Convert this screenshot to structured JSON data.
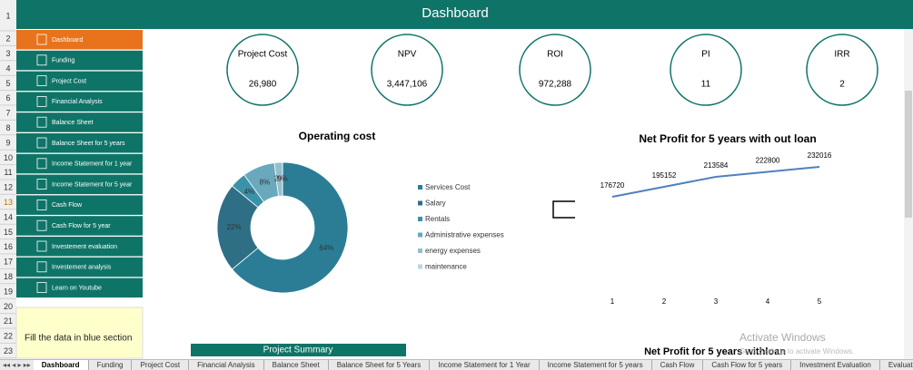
{
  "header": {
    "title": "Dashboard"
  },
  "row_numbers": [
    "1",
    "2",
    "3",
    "4",
    "5",
    "6",
    "7",
    "8",
    "9",
    "10",
    "11",
    "12",
    "13",
    "14",
    "15",
    "16",
    "17",
    "18",
    "19",
    "20",
    "21",
    "22",
    "23"
  ],
  "sidebar": [
    "Dashboard",
    "Funding",
    "Project Cost",
    "Financial Analysis",
    "Balance Sheet",
    "Balance Sheet for 5 years",
    "Income Statement for 1 year",
    "Income Statement for 5 year",
    "Cash Flow",
    "Cash Flow for 5 year",
    "Investement evaluation",
    "Investement analysis",
    "Learn on Youtube"
  ],
  "note": "Fill the data in blue section",
  "kpis": [
    {
      "label": "Project Cost",
      "value": "26,980"
    },
    {
      "label": "NPV",
      "value": "3,447,106"
    },
    {
      "label": "ROI",
      "value": "972,288"
    },
    {
      "label": "PI",
      "value": "11"
    },
    {
      "label": "IRR",
      "value": "2"
    }
  ],
  "chart_data": [
    {
      "type": "pie",
      "title": "Operating cost",
      "categories": [
        "Services Cost",
        "Salary",
        "Rentals",
        "Administrative expenses",
        "energy expenses",
        "maintenance"
      ],
      "values": [
        64,
        22,
        4,
        8,
        2,
        0
      ],
      "value_labels": [
        "64%",
        "22%",
        "4%",
        "8%",
        "2%",
        "0%"
      ],
      "colors": [
        "#2b7d96",
        "#2f6f86",
        "#3a91aa",
        "#6aa9bd",
        "#93bfce",
        "#b9d6e0"
      ]
    },
    {
      "type": "line",
      "title": "Net Profit for 5 years with out loan",
      "categories": [
        "1",
        "2",
        "3",
        "4",
        "5"
      ],
      "values": [
        176720,
        195152,
        213584,
        222800,
        232016
      ],
      "color": "#4f81bd"
    }
  ],
  "summary_title": "Project Summary",
  "second_chart_title": "Net Profit for 5 years withloan",
  "watermark": {
    "title": "Activate Windows",
    "subtitle": "Go to Settings to activate Windows."
  },
  "tabs": [
    "Dashboard",
    "Funding",
    "Project Cost",
    "Financial Analysis",
    "Balance Sheet",
    "Balance Sheet for 5 Years",
    "Income Statement for 1 Year",
    "Income Statement for 5 years",
    "Cash Flow",
    "Cash Flow for 5 years",
    "Investment Evaluation",
    "Evaluation"
  ]
}
